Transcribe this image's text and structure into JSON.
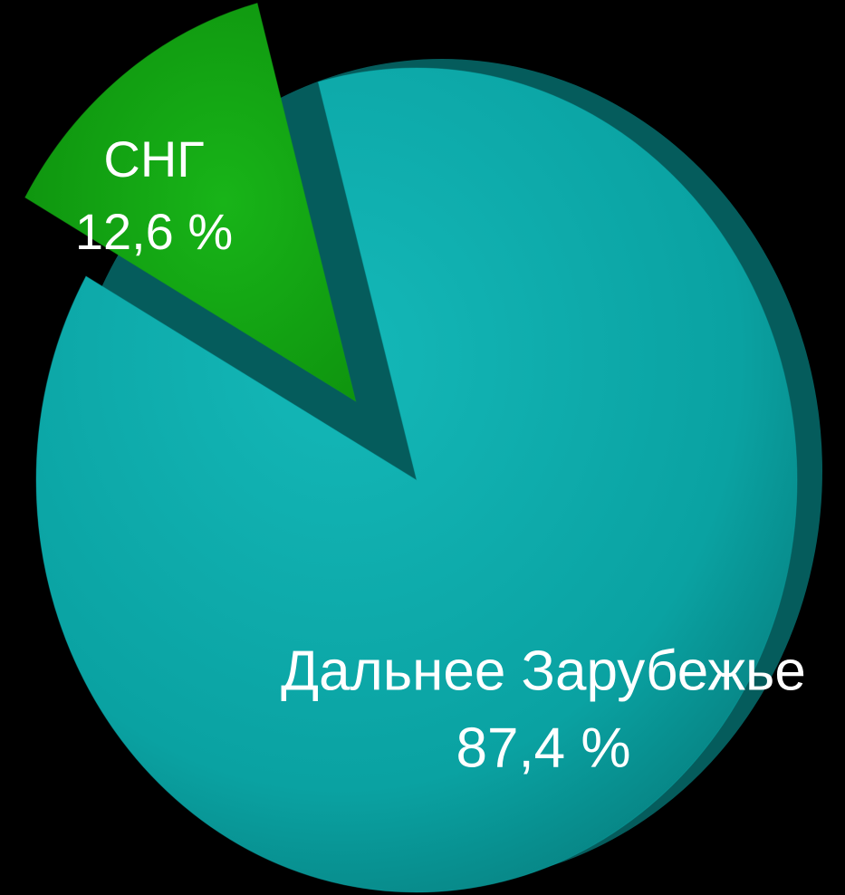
{
  "chart_data": {
    "type": "pie",
    "categories": [
      "СНГ",
      "Дальнее Зарубежье"
    ],
    "values": [
      12.6,
      87.4
    ],
    "value_labels": [
      "12,6 %",
      "87,4 %"
    ],
    "colors": [
      "#14a614",
      "#0aa9a9"
    ]
  }
}
